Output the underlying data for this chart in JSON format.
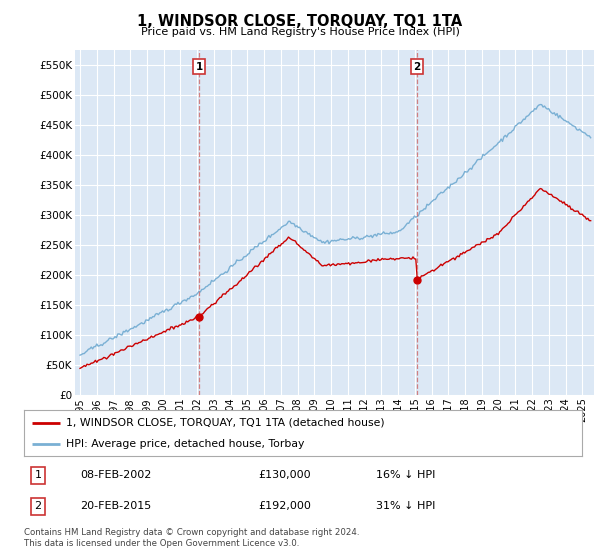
{
  "title": "1, WINDSOR CLOSE, TORQUAY, TQ1 1TA",
  "subtitle": "Price paid vs. HM Land Registry's House Price Index (HPI)",
  "background_color": "#ffffff",
  "plot_bg_color": "#dce8f5",
  "plot_bg_between": "#dce8f5",
  "grid_color": "#ffffff",
  "ylim": [
    0,
    575000
  ],
  "yticks": [
    0,
    50000,
    100000,
    150000,
    200000,
    250000,
    300000,
    350000,
    400000,
    450000,
    500000,
    550000
  ],
  "ytick_labels": [
    "£0",
    "£50K",
    "£100K",
    "£150K",
    "£200K",
    "£250K",
    "£300K",
    "£350K",
    "£400K",
    "£450K",
    "£500K",
    "£550K"
  ],
  "legend_items": [
    {
      "label": "1, WINDSOR CLOSE, TORQUAY, TQ1 1TA (detached house)",
      "color": "#cc0000"
    },
    {
      "label": "HPI: Average price, detached house, Torbay",
      "color": "#7ab0d4"
    }
  ],
  "sale1": {
    "date_x": 2002.12,
    "price": 130000,
    "label": "1",
    "hpi_pct": "16% ↓ HPI",
    "display_date": "08-FEB-2002"
  },
  "sale2": {
    "date_x": 2015.12,
    "price": 192000,
    "label": "2",
    "hpi_pct": "31% ↓ HPI",
    "display_date": "20-FEB-2015"
  },
  "footer1": "Contains HM Land Registry data © Crown copyright and database right 2024.",
  "footer2": "This data is licensed under the Open Government Licence v3.0.",
  "hpi_color": "#7ab0d4",
  "price_color": "#cc0000",
  "vline_color": "#cc6666",
  "shade_color": "#dde8f5",
  "xlim_left": 1994.7,
  "xlim_right": 2025.7,
  "t_start": 1995.0,
  "t_end": 2025.5,
  "rand_seed": 42
}
